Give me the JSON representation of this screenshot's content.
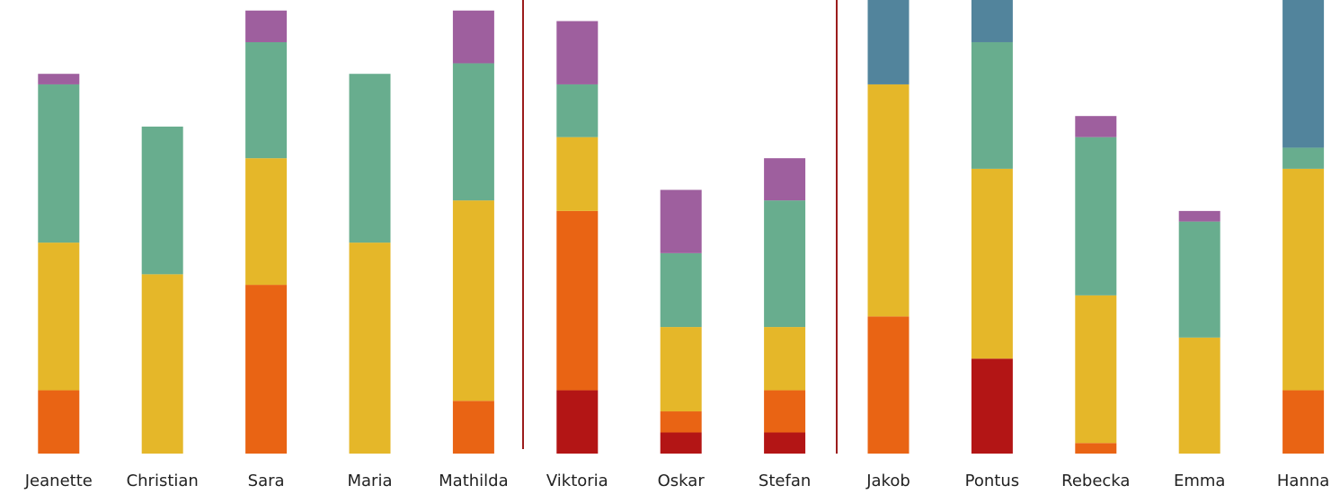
{
  "chart_data": {
    "type": "stacked_bar",
    "categories": [
      "Jeanette",
      "Christian",
      "Sara",
      "Maria",
      "Mathilda",
      "Viktoria",
      "Oskar",
      "Stefan",
      "Jakob",
      "Pontus",
      "Rebecka",
      "Emma",
      "Hanna"
    ],
    "series": [
      {
        "color": "#b31515",
        "values": [
          0,
          0,
          0,
          0,
          0,
          6,
          2,
          2,
          0,
          9,
          0,
          0,
          0
        ]
      },
      {
        "color": "#e96414",
        "values": [
          6,
          0,
          16,
          0,
          5,
          17,
          2,
          4,
          13,
          0,
          1,
          0,
          6
        ]
      },
      {
        "color": "#e5b729",
        "values": [
          14,
          17,
          12,
          20,
          19,
          7,
          8,
          6,
          22,
          18,
          14,
          11,
          21
        ]
      },
      {
        "color": "#68ad8e",
        "values": [
          15,
          14,
          11,
          16,
          13,
          5,
          7,
          12,
          0,
          12,
          15,
          11,
          2
        ]
      },
      {
        "color": "#9e5f9e",
        "values": [
          1,
          0,
          3,
          0,
          5,
          6,
          6,
          4,
          0,
          0,
          2,
          1,
          0
        ]
      },
      {
        "color": "#52849c",
        "values": [
          0,
          0,
          0,
          0,
          0,
          0,
          0,
          0,
          8,
          4,
          0,
          0,
          14
        ]
      }
    ],
    "ylim": [
      0,
      43
    ]
  }
}
